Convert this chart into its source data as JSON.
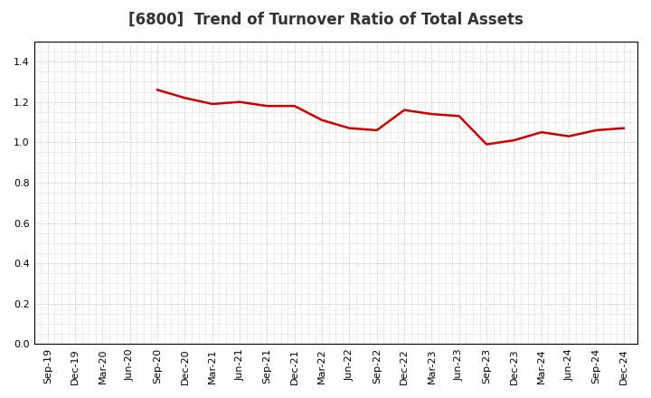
{
  "title": "[6800]  Trend of Turnover Ratio of Total Assets",
  "x_labels": [
    "Sep-19",
    "Dec-19",
    "Mar-20",
    "Jun-20",
    "Sep-20",
    "Dec-20",
    "Mar-21",
    "Jun-21",
    "Sep-21",
    "Dec-21",
    "Mar-22",
    "Jun-22",
    "Sep-22",
    "Dec-22",
    "Mar-23",
    "Jun-23",
    "Sep-23",
    "Dec-23",
    "Mar-24",
    "Jun-24",
    "Sep-24",
    "Dec-24"
  ],
  "y_values": [
    null,
    null,
    null,
    null,
    1.26,
    1.22,
    1.19,
    1.2,
    1.18,
    1.18,
    1.11,
    1.07,
    1.06,
    1.16,
    1.14,
    1.13,
    0.99,
    1.01,
    1.05,
    1.03,
    1.06,
    1.07
  ],
  "ylim": [
    0.0,
    1.5
  ],
  "yticks": [
    0.0,
    0.2,
    0.4,
    0.6,
    0.8,
    1.0,
    1.2,
    1.4
  ],
  "line_color": "#cc0000",
  "line_width": 1.8,
  "bg_color": "#ffffff",
  "plot_bg_color": "#ffffff",
  "grid_color": "#aaaaaa",
  "title_fontsize": 12,
  "tick_fontsize": 8,
  "title_color": "#333333"
}
